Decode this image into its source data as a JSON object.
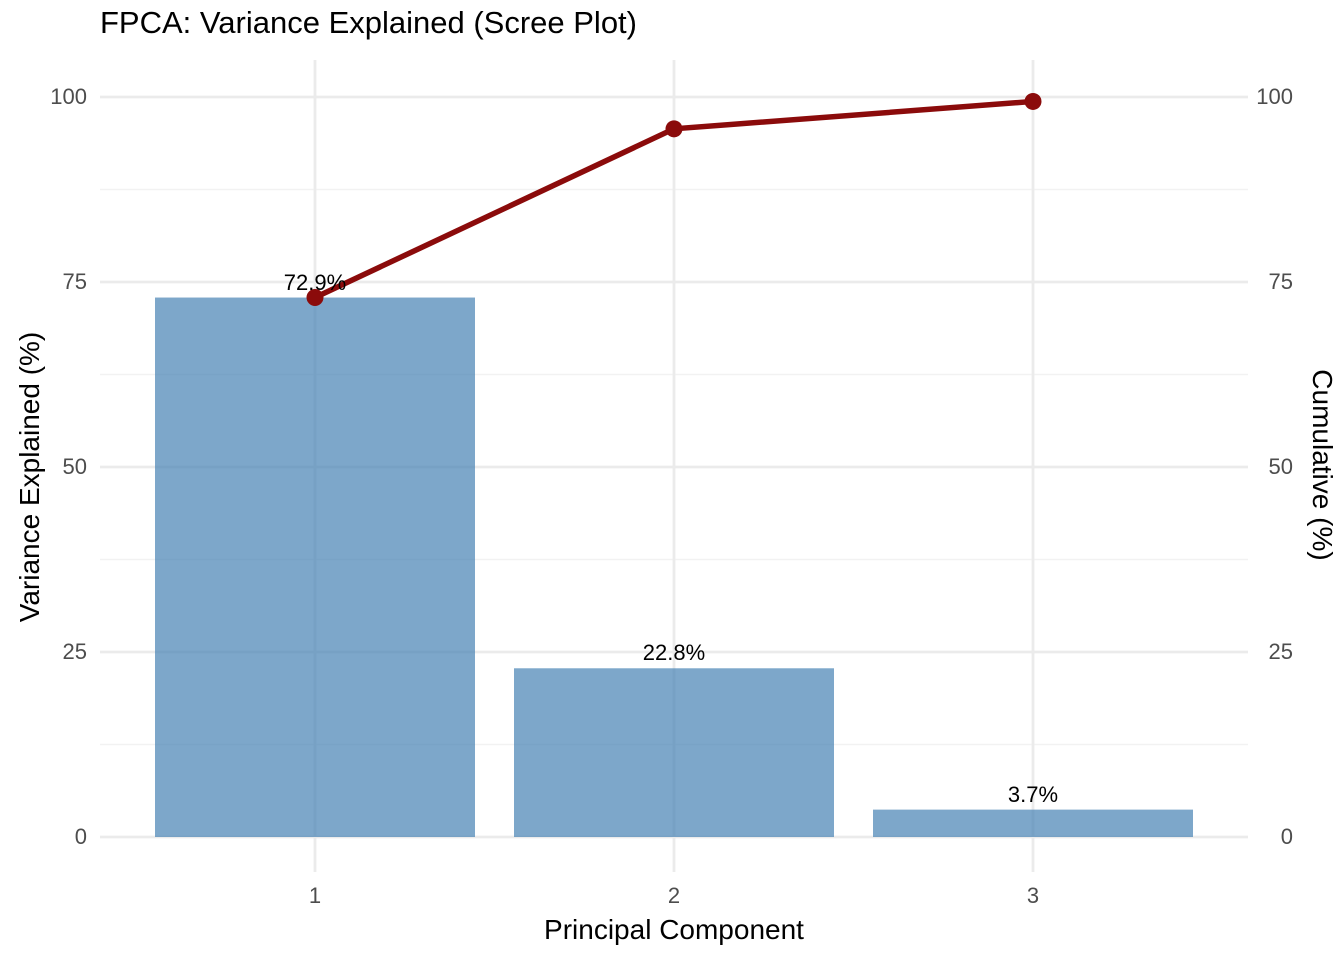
{
  "title": "FPCA: Variance Explained (Scree Plot)",
  "colors": {
    "background": "#ffffff",
    "bar_fill": "#4682b4",
    "bar_opacity": 0.7,
    "line": "#8b0b0b",
    "grid_major": "#ebebeb",
    "grid_minor": "#f2f2f2",
    "tick_text": "#4d4d4d",
    "title_text": "#000000"
  },
  "chart_data": {
    "type": "bar",
    "subtype": "scree plot with cumulative line overlay (bar + line, dual y-axis)",
    "title": "FPCA: Variance Explained (Scree Plot)",
    "xlabel": "Principal Component",
    "ylabel_left": "Variance Explained (%)",
    "ylabel_right": "Cumulative (%)",
    "categories": [
      "1",
      "2",
      "3"
    ],
    "series": [
      {
        "name": "Variance Explained (%)",
        "type": "bar",
        "values": [
          72.9,
          22.8,
          3.7
        ],
        "labels": [
          "72.9%",
          "22.8%",
          "3.7%"
        ]
      },
      {
        "name": "Cumulative (%)",
        "type": "line",
        "values": [
          72.9,
          95.7,
          99.4
        ]
      }
    ],
    "y_ticks": [
      0,
      25,
      50,
      75,
      100
    ],
    "y_tick_labels": [
      "0",
      "25",
      "50",
      "75",
      "100"
    ],
    "ylim": [
      0,
      100
    ],
    "grid": "horizontal major+minor, vertical major at each category",
    "legend": "none"
  }
}
